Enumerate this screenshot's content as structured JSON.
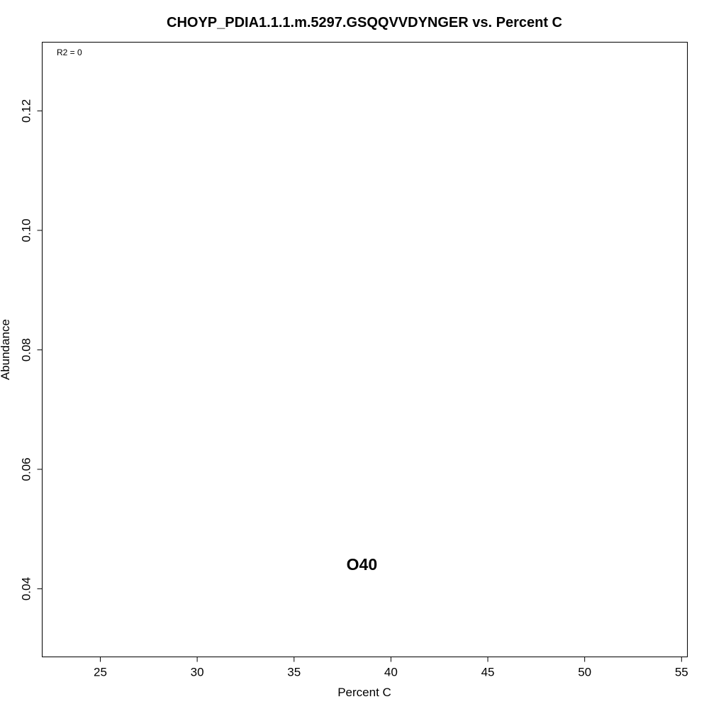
{
  "chart_data": {
    "type": "scatter",
    "title": "CHOYP_PDIA1.1.1.m.5297.GSQQVVDYNGER vs. Percent C",
    "xlabel": "Percent C",
    "ylabel": "Abundance",
    "xlim": [
      22,
      55.3
    ],
    "ylim": [
      0.0286,
      0.1315
    ],
    "x_ticks": [
      25,
      30,
      35,
      40,
      45,
      50,
      55
    ],
    "x_tick_labels": [
      "25",
      "30",
      "35",
      "40",
      "45",
      "50",
      "55"
    ],
    "y_ticks": [
      0.04,
      0.06,
      0.08,
      0.1,
      0.12
    ],
    "y_tick_labels": [
      "0.04",
      "0.06",
      "0.08",
      "0.10",
      "0.12"
    ],
    "annotation": "R2 = 0",
    "points": [
      {
        "x": 38.5,
        "y": 0.0441,
        "label": "O40"
      }
    ],
    "grid": false,
    "legend": "none"
  }
}
